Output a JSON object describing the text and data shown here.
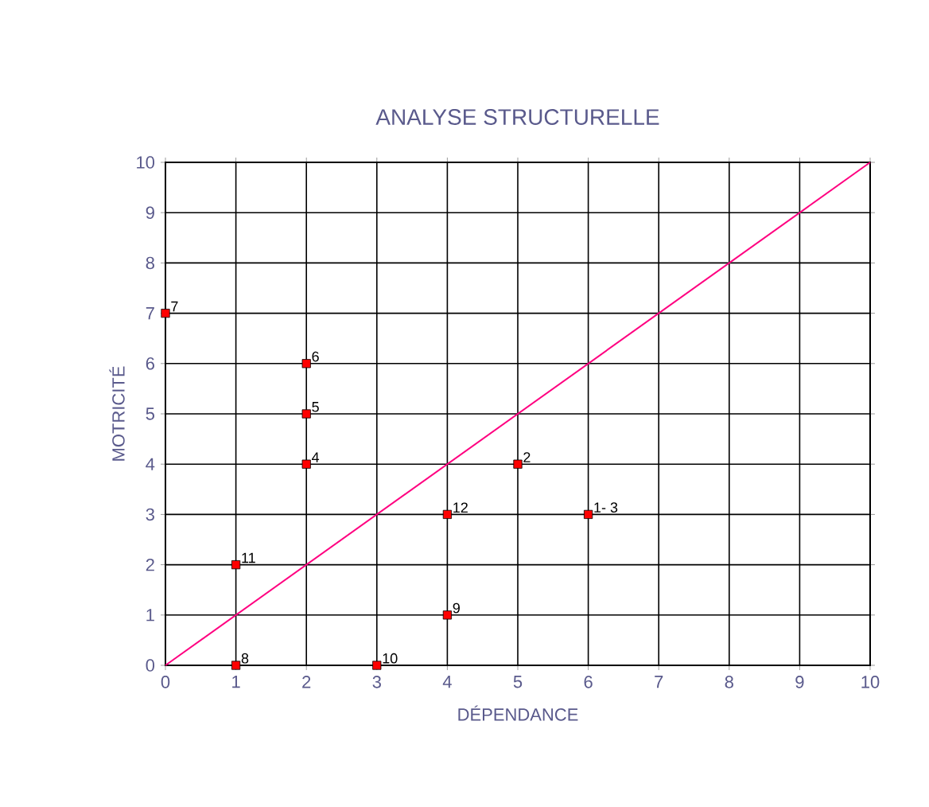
{
  "chart_data": {
    "type": "scatter",
    "title": "ANALYSE STRUCTURELLE",
    "xlabel": "DÉPENDANCE",
    "ylabel": "MOTRICITÉ",
    "xlim": [
      0,
      10
    ],
    "ylim": [
      0,
      10
    ],
    "xticks": [
      0,
      1,
      2,
      3,
      4,
      5,
      6,
      7,
      8,
      9,
      10
    ],
    "yticks": [
      0,
      1,
      2,
      3,
      4,
      5,
      6,
      7,
      8,
      9,
      10
    ],
    "grid": true,
    "marker": "square",
    "series": [
      {
        "color": "#ff0000",
        "x": [
          0,
          2,
          2,
          2,
          1,
          1,
          3,
          4,
          4,
          5,
          6
        ],
        "values": [
          7,
          6,
          5,
          4,
          2,
          0,
          0,
          1,
          3,
          4,
          3
        ]
      },
      {
        "type": "line",
        "color": "#ff0080",
        "x": [
          0,
          10
        ],
        "values": [
          0,
          10
        ],
        "marker": "none",
        "line_style": "solid"
      }
    ],
    "annotations": [
      {
        "text": "7",
        "x": 0,
        "y": 7
      },
      {
        "text": "6",
        "x": 2,
        "y": 6
      },
      {
        "text": "5",
        "x": 2,
        "y": 5
      },
      {
        "text": "4",
        "x": 2,
        "y": 4
      },
      {
        "text": "11",
        "x": 1,
        "y": 2
      },
      {
        "text": "8",
        "x": 1,
        "y": 0
      },
      {
        "text": "10",
        "x": 3,
        "y": 0
      },
      {
        "text": "9",
        "x": 4,
        "y": 1
      },
      {
        "text": "12",
        "x": 4,
        "y": 3
      },
      {
        "text": "2",
        "x": 5,
        "y": 4
      },
      {
        "text": "1- 3",
        "x": 6,
        "y": 3
      }
    ]
  }
}
